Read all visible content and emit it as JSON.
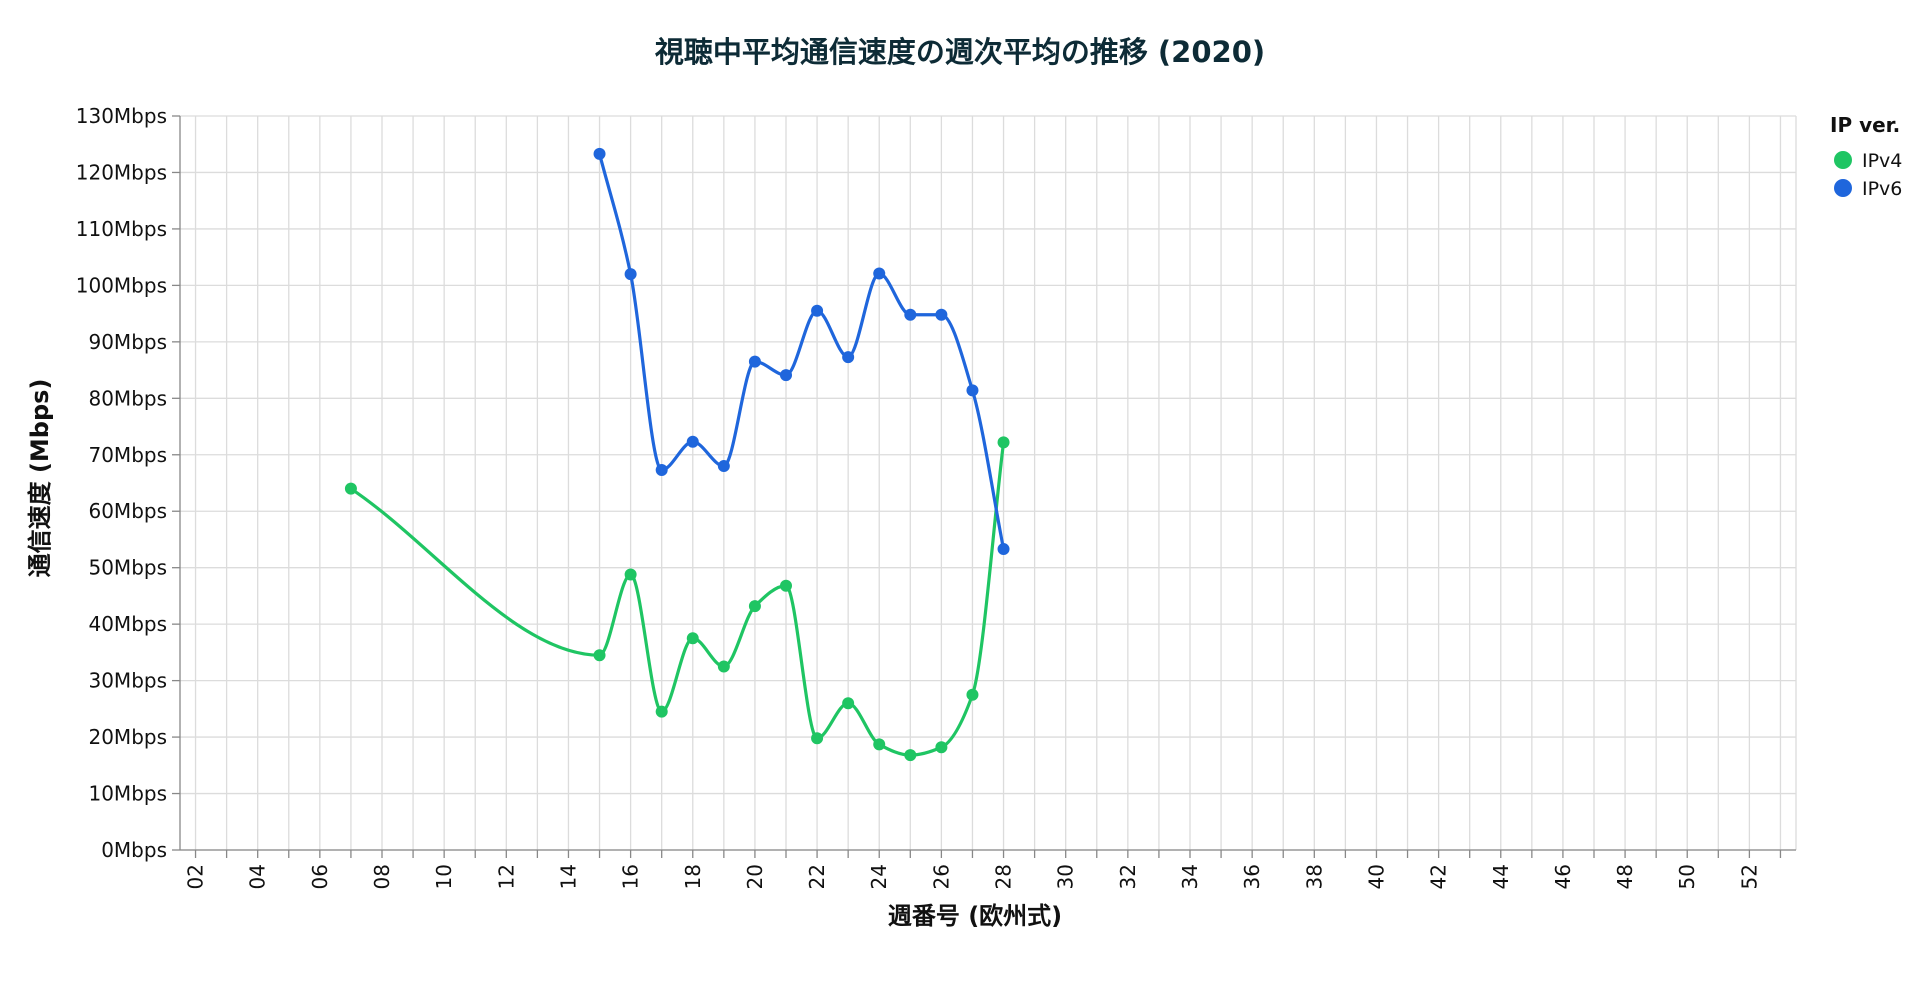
{
  "chart_data": {
    "type": "line",
    "title": "視聴中平均通信速度の週次平均の推移 (2020)",
    "xlabel": "週番号 (欧州式)",
    "ylabel": "通信速度 (Mbps)",
    "x_ticks": [
      "02",
      "04",
      "06",
      "08",
      "10",
      "12",
      "14",
      "16",
      "18",
      "20",
      "22",
      "24",
      "26",
      "28",
      "30",
      "32",
      "34",
      "36",
      "38",
      "40",
      "42",
      "44",
      "46",
      "48",
      "50",
      "52"
    ],
    "x_domain": [
      1.5,
      53.5
    ],
    "y_ticks": [
      "0Mbps",
      "10Mbps",
      "20Mbps",
      "30Mbps",
      "40Mbps",
      "50Mbps",
      "60Mbps",
      "70Mbps",
      "80Mbps",
      "90Mbps",
      "100Mbps",
      "110Mbps",
      "120Mbps",
      "130Mbps"
    ],
    "ylim": [
      0,
      130
    ],
    "grid": true,
    "legend": {
      "title": "IP ver.",
      "position": "top-right"
    },
    "series": [
      {
        "name": "IPv4",
        "color": "#1fc563",
        "points": [
          {
            "x": 7,
            "y": 64
          },
          {
            "x": 15,
            "y": 34.5
          },
          {
            "x": 16,
            "y": 48.8
          },
          {
            "x": 17,
            "y": 24.5
          },
          {
            "x": 18,
            "y": 37.5
          },
          {
            "x": 19,
            "y": 32.5
          },
          {
            "x": 20,
            "y": 43.2
          },
          {
            "x": 21,
            "y": 46.8
          },
          {
            "x": 22,
            "y": 19.8
          },
          {
            "x": 23,
            "y": 26
          },
          {
            "x": 24,
            "y": 18.7
          },
          {
            "x": 25,
            "y": 16.8
          },
          {
            "x": 26,
            "y": 18.2
          },
          {
            "x": 27,
            "y": 27.5
          },
          {
            "x": 28,
            "y": 72.2
          }
        ]
      },
      {
        "name": "IPv6",
        "color": "#1f66dc",
        "points": [
          {
            "x": 15,
            "y": 123.3
          },
          {
            "x": 16,
            "y": 102
          },
          {
            "x": 17,
            "y": 67.3
          },
          {
            "x": 18,
            "y": 72.3
          },
          {
            "x": 19,
            "y": 68
          },
          {
            "x": 20,
            "y": 86.5
          },
          {
            "x": 21,
            "y": 84.1
          },
          {
            "x": 22,
            "y": 95.5
          },
          {
            "x": 23,
            "y": 87.3
          },
          {
            "x": 24,
            "y": 102.1
          },
          {
            "x": 25,
            "y": 94.8
          },
          {
            "x": 26,
            "y": 94.8
          },
          {
            "x": 27,
            "y": 81.4
          },
          {
            "x": 28,
            "y": 53.3
          }
        ]
      }
    ]
  }
}
